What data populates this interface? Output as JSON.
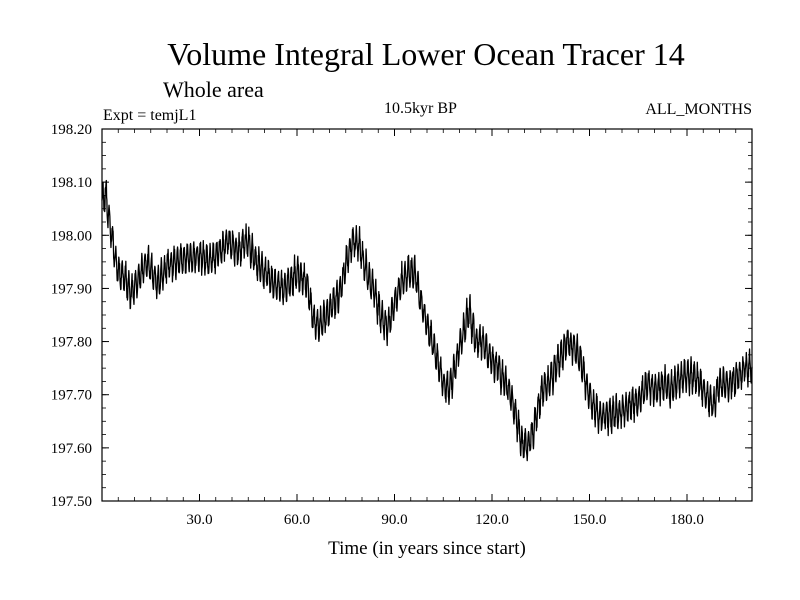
{
  "chart_data": {
    "type": "line",
    "title": "Volume Integral Lower Ocean Tracer 14",
    "subtitle": "Whole area",
    "expt_label": "Expt = temjL1",
    "period_label": "10.5kyr BP",
    "months_label": "ALL_MONTHS",
    "xlabel": "Time (in years since start)",
    "ylabel": "",
    "xlim": [
      0,
      200
    ],
    "ylim": [
      197.5,
      198.2
    ],
    "x_ticks": [
      30,
      60,
      90,
      120,
      150,
      180
    ],
    "x_tick_labels": [
      "30.0",
      "60.0",
      "90.0",
      "120.0",
      "150.0",
      "180.0"
    ],
    "y_ticks": [
      197.5,
      197.6,
      197.7,
      197.8,
      197.9,
      198.0,
      198.1,
      198.2
    ],
    "y_tick_labels": [
      "197.50",
      "197.60",
      "197.70",
      "197.80",
      "197.90",
      "198.00",
      "198.10",
      "198.20"
    ],
    "grid": false,
    "legend": "none",
    "series": [
      {
        "name": "temjL1",
        "color": "#000000",
        "noise_amplitude": 0.028,
        "samples_per_year": 12,
        "x": [
          0,
          1,
          2,
          3,
          4,
          5,
          7,
          9,
          12,
          14,
          17,
          20,
          23,
          27,
          30,
          33,
          36,
          39,
          42,
          45,
          47,
          50,
          53,
          56,
          60,
          63,
          65,
          67,
          70,
          73,
          75,
          77,
          79,
          82,
          84,
          86,
          88,
          90,
          92,
          94,
          96,
          98,
          100,
          103,
          105,
          107,
          110,
          113,
          115,
          117,
          119,
          122,
          125,
          127,
          129,
          131,
          133,
          135,
          138,
          141,
          143,
          145,
          147,
          149,
          151,
          153,
          156,
          160,
          165,
          168,
          170,
          173,
          175,
          178,
          180,
          183,
          185,
          188,
          190,
          193,
          195,
          198,
          200
        ],
        "values": [
          198.06,
          198.08,
          198.04,
          198.0,
          197.96,
          197.93,
          197.92,
          197.89,
          197.93,
          197.95,
          197.91,
          197.94,
          197.95,
          197.96,
          197.96,
          197.95,
          197.97,
          197.99,
          197.97,
          197.99,
          197.95,
          197.93,
          197.91,
          197.9,
          197.93,
          197.91,
          197.84,
          197.83,
          197.86,
          197.89,
          197.94,
          197.99,
          197.98,
          197.92,
          197.89,
          197.84,
          197.83,
          197.87,
          197.91,
          197.93,
          197.93,
          197.88,
          197.83,
          197.77,
          197.72,
          197.71,
          197.79,
          197.86,
          197.8,
          197.8,
          197.77,
          197.75,
          197.71,
          197.67,
          197.61,
          197.6,
          197.64,
          197.7,
          197.73,
          197.77,
          197.8,
          197.79,
          197.77,
          197.72,
          197.68,
          197.66,
          197.66,
          197.67,
          197.69,
          197.72,
          197.71,
          197.72,
          197.71,
          197.73,
          197.74,
          197.73,
          197.71,
          197.68,
          197.72,
          197.72,
          197.73,
          197.75,
          197.75
        ]
      }
    ]
  }
}
